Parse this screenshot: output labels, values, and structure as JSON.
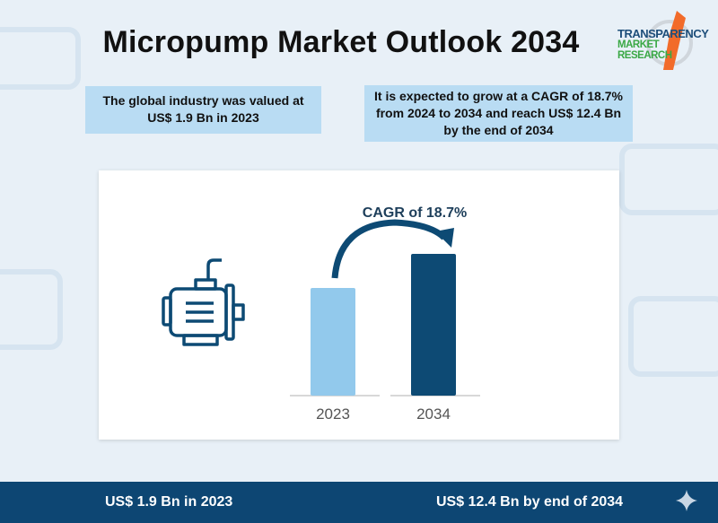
{
  "title": "Micropump Market Outlook 2034",
  "logo": {
    "line1": "TRANSPARENCY",
    "line2": "MARKET RESEARCH"
  },
  "info_left": {
    "line1": "The global industry was valued at",
    "line2": "US$ 1.9 Bn in 2023"
  },
  "info_right": {
    "line1": "It is expected to grow at a CAGR of 18.7%",
    "line2": "from 2024 to 2034 and reach US$ 12.4 Bn",
    "line3": "by the end of 2034"
  },
  "chart_data": {
    "type": "bar",
    "categories": [
      "2023",
      "2034"
    ],
    "values": [
      1.9,
      12.4
    ],
    "unit": "US$ Bn",
    "annotation": "CAGR of 18.7%",
    "colors": [
      "#92c9ec",
      "#0d4a74"
    ]
  },
  "footer": {
    "left": "US$ 1.9 Bn in 2023",
    "right": "US$ 12.4 Bn by end of 2034"
  }
}
